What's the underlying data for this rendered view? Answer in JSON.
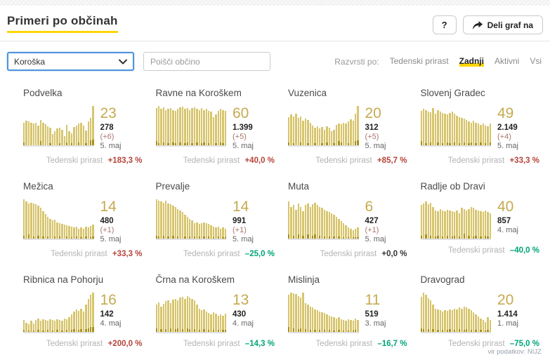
{
  "header": {
    "title": "Primeri po občinah",
    "help_button": "?",
    "share_button": "Deli graf na"
  },
  "filters": {
    "region_select": {
      "value": "Koroška"
    },
    "search": {
      "placeholder": "Poišči občino"
    },
    "sort": {
      "label": "Razvrsti po:",
      "options": [
        {
          "label": "Tedenski prirast",
          "active": false
        },
        {
          "label": "Zadnji",
          "active": true
        },
        {
          "label": "Aktivni",
          "active": false
        },
        {
          "label": "Vsi",
          "active": false
        }
      ]
    }
  },
  "growth_label": "Tedenski prirast",
  "colors": {
    "accent_yellow": "#ffd500",
    "bar_light": "#d7c56d",
    "bar_dark": "#a8901c",
    "big_number_gold": "#c6aa4f",
    "growth_up_red": "#b5443a",
    "growth_down_green": "#00a478",
    "growth_zero_dark": "#333333",
    "select_focus_blue": "#4e94dc"
  },
  "cards": [
    {
      "name": "Podvelka",
      "big": "23",
      "total": "278",
      "delta": "(+6)",
      "date": "5. maj",
      "growth_value": "+183,3 %",
      "growth_dir": "up",
      "chart_data": {
        "type": "bar",
        "bars": [
          58,
          63,
          60,
          57,
          55,
          57,
          50,
          64,
          57,
          54,
          48,
          44,
          28,
          36,
          42,
          44,
          40,
          24,
          52,
          36,
          30,
          46,
          50,
          55,
          58,
          50,
          38,
          60,
          70,
          100
        ],
        "base": [
          8,
          0,
          0,
          0,
          0,
          0,
          0,
          10,
          0,
          0,
          0,
          5,
          0,
          0,
          0,
          5,
          0,
          0,
          8,
          0,
          5,
          0,
          0,
          8,
          0,
          0,
          5,
          0,
          12,
          14
        ]
      }
    },
    {
      "name": "Ravne na Koroškem",
      "big": "60",
      "total": "1.399",
      "delta": "(+5)",
      "date": "5. maj",
      "growth_value": "+40,0 %",
      "growth_dir": "up",
      "chart_data": {
        "type": "bar",
        "bars": [
          95,
          100,
          92,
          96,
          90,
          92,
          95,
          90,
          88,
          92,
          96,
          98,
          92,
          95,
          90,
          94,
          96,
          92,
          90,
          94,
          90,
          92,
          88,
          85,
          72,
          78,
          88,
          92,
          90,
          88
        ],
        "base": [
          10,
          6,
          0,
          8,
          0,
          6,
          0,
          8,
          6,
          0,
          8,
          0,
          6,
          8,
          0,
          6,
          0,
          8,
          0,
          6,
          8,
          0,
          6,
          0,
          0,
          6,
          0,
          8,
          6,
          0
        ]
      }
    },
    {
      "name": "Vuzenica",
      "big": "20",
      "total": "312",
      "delta": "(+5)",
      "date": "5. maj",
      "growth_value": "+85,7 %",
      "growth_dir": "up",
      "chart_data": {
        "type": "bar",
        "bars": [
          72,
          78,
          74,
          80,
          70,
          74,
          62,
          68,
          64,
          58,
          50,
          45,
          48,
          42,
          46,
          40,
          48,
          44,
          36,
          40,
          52,
          56,
          54,
          58,
          56,
          60,
          66,
          62,
          80,
          100
        ],
        "base": [
          8,
          0,
          6,
          0,
          0,
          8,
          0,
          0,
          6,
          0,
          0,
          6,
          0,
          0,
          6,
          0,
          8,
          0,
          0,
          6,
          0,
          10,
          8,
          0,
          0,
          6,
          0,
          0,
          10,
          12
        ]
      }
    },
    {
      "name": "Slovenj Gradec",
      "big": "49",
      "total": "2.149",
      "delta": "(+4)",
      "date": "5. maj",
      "growth_value": "+33,3 %",
      "growth_dir": "up",
      "chart_data": {
        "type": "bar",
        "bars": [
          88,
          92,
          90,
          86,
          84,
          95,
          80,
          90,
          85,
          82,
          80,
          78,
          82,
          85,
          80,
          75,
          72,
          70,
          68,
          64,
          60,
          58,
          62,
          58,
          55,
          52,
          56,
          50,
          48,
          55
        ],
        "base": [
          10,
          0,
          6,
          0,
          8,
          0,
          0,
          8,
          0,
          6,
          0,
          8,
          6,
          0,
          8,
          0,
          6,
          0,
          8,
          0,
          6,
          8,
          0,
          6,
          0,
          8,
          0,
          6,
          0,
          8
        ]
      }
    },
    {
      "name": "Mežica",
      "big": "14",
      "total": "480",
      "delta": "(+1)",
      "date": "5. maj",
      "growth_value": "+33,3 %",
      "growth_dir": "up",
      "chart_data": {
        "type": "bar",
        "bars": [
          100,
          94,
          90,
          92,
          90,
          88,
          84,
          78,
          70,
          62,
          55,
          50,
          46,
          48,
          42,
          40,
          38,
          36,
          34,
          32,
          30,
          28,
          30,
          26,
          28,
          25,
          30,
          28,
          32,
          36
        ],
        "base": [
          8,
          0,
          10,
          0,
          6,
          0,
          8,
          0,
          6,
          0,
          6,
          0,
          0,
          6,
          0,
          5,
          0,
          0,
          5,
          0,
          4,
          0,
          5,
          0,
          4,
          0,
          5,
          0,
          4,
          6
        ]
      }
    },
    {
      "name": "Prevalje",
      "big": "14",
      "total": "991",
      "delta": "(+1)",
      "date": "5. maj",
      "growth_value": "–25,0 %",
      "growth_dir": "down",
      "chart_data": {
        "type": "bar",
        "bars": [
          100,
          97,
          94,
          92,
          96,
          90,
          88,
          84,
          80,
          75,
          72,
          68,
          60,
          55,
          50,
          46,
          40,
          42,
          38,
          40,
          42,
          40,
          38,
          34,
          30,
          28,
          30,
          26,
          28,
          25
        ],
        "base": [
          8,
          6,
          0,
          8,
          0,
          6,
          0,
          8,
          0,
          6,
          0,
          0,
          6,
          0,
          6,
          0,
          5,
          0,
          5,
          0,
          6,
          0,
          5,
          0,
          4,
          0,
          5,
          0,
          4,
          4
        ]
      }
    },
    {
      "name": "Muta",
      "big": "6",
      "total": "427",
      "delta": "(+1)",
      "date": "5. maj",
      "growth_value": "+0,0 %",
      "growth_dir": "zero",
      "chart_data": {
        "type": "bar",
        "bars": [
          95,
          80,
          86,
          74,
          90,
          80,
          70,
          85,
          90,
          80,
          88,
          92,
          85,
          80,
          78,
          74,
          70,
          68,
          64,
          60,
          55,
          50,
          45,
          40,
          34,
          28,
          25,
          22,
          26,
          28
        ],
        "base": [
          10,
          0,
          8,
          0,
          10,
          0,
          8,
          0,
          10,
          0,
          8,
          10,
          0,
          8,
          0,
          6,
          0,
          6,
          0,
          5,
          0,
          5,
          0,
          4,
          0,
          4,
          0,
          3,
          4,
          4
        ]
      }
    },
    {
      "name": "Radlje ob Dravi",
      "big": "40",
      "total": "857",
      "delta": null,
      "date": "4. maj",
      "growth_value": "–40,0 %",
      "growth_dir": "down",
      "chart_data": {
        "type": "bar",
        "bars": [
          86,
          90,
          95,
          88,
          92,
          80,
          72,
          70,
          75,
          72,
          70,
          74,
          72,
          70,
          68,
          72,
          64,
          78,
          75,
          72,
          76,
          80,
          78,
          74,
          72,
          70,
          68,
          72,
          68,
          64
        ],
        "base": [
          8,
          0,
          10,
          0,
          8,
          0,
          6,
          8,
          0,
          6,
          0,
          8,
          0,
          6,
          8,
          0,
          6,
          0,
          12,
          0,
          8,
          0,
          6,
          8,
          0,
          6,
          0,
          8,
          6,
          0
        ]
      }
    },
    {
      "name": "Ribnica na Pohorju",
      "big": "16",
      "total": "142",
      "delta": null,
      "date": "4. maj",
      "growth_value": "+200,0 %",
      "growth_dir": "up",
      "chart_data": {
        "type": "bar",
        "bars": [
          30,
          24,
          20,
          28,
          22,
          30,
          34,
          28,
          32,
          30,
          28,
          32,
          30,
          28,
          32,
          30,
          28,
          35,
          32,
          38,
          45,
          52,
          58,
          54,
          60,
          52,
          70,
          85,
          95,
          100
        ],
        "base": [
          6,
          0,
          4,
          0,
          4,
          0,
          6,
          0,
          4,
          0,
          6,
          0,
          4,
          0,
          6,
          0,
          4,
          0,
          6,
          0,
          6,
          8,
          0,
          6,
          8,
          0,
          8,
          10,
          12,
          12
        ]
      }
    },
    {
      "name": "Črna na Koroškem",
      "big": "13",
      "total": "430",
      "delta": null,
      "date": "4. maj",
      "growth_value": "–14,3 %",
      "growth_dir": "down",
      "chart_data": {
        "type": "bar",
        "bars": [
          70,
          75,
          64,
          72,
          78,
          80,
          74,
          82,
          85,
          80,
          88,
          90,
          85,
          92,
          88,
          84,
          80,
          70,
          60,
          55,
          58,
          52,
          48,
          45,
          50,
          46,
          42,
          45,
          42,
          46
        ],
        "base": [
          10,
          0,
          8,
          0,
          8,
          0,
          10,
          0,
          8,
          10,
          0,
          8,
          0,
          10,
          8,
          0,
          8,
          0,
          6,
          0,
          8,
          0,
          6,
          0,
          6,
          0,
          5,
          0,
          5,
          6
        ]
      }
    },
    {
      "name": "Mislinja",
      "big": "11",
      "total": "519",
      "delta": null,
      "date": "3. maj",
      "growth_value": "–16,7 %",
      "growth_dir": "down",
      "chart_data": {
        "type": "bar",
        "bars": [
          95,
          100,
          98,
          96,
          92,
          88,
          100,
          74,
          70,
          65,
          62,
          58,
          55,
          52,
          50,
          48,
          45,
          42,
          40,
          38,
          35,
          38,
          32,
          30,
          28,
          32,
          30,
          28,
          35,
          30
        ],
        "base": [
          12,
          0,
          10,
          0,
          8,
          10,
          0,
          8,
          0,
          6,
          0,
          6,
          0,
          5,
          0,
          5,
          0,
          5,
          0,
          4,
          0,
          5,
          0,
          4,
          0,
          4,
          0,
          4,
          5,
          0
        ]
      }
    },
    {
      "name": "Dravograd",
      "big": "20",
      "total": "1.414",
      "delta": null,
      "date": "1. maj",
      "growth_value": "–75,0 %",
      "growth_dir": "down",
      "chart_data": {
        "type": "bar",
        "bars": [
          90,
          100,
          94,
          86,
          80,
          70,
          60,
          58,
          55,
          52,
          56,
          54,
          58,
          55,
          60,
          58,
          62,
          60,
          64,
          62,
          60,
          55,
          50,
          45,
          40,
          34,
          30,
          25,
          38,
          30
        ],
        "base": [
          10,
          8,
          0,
          8,
          0,
          8,
          0,
          6,
          0,
          6,
          0,
          6,
          8,
          0,
          6,
          0,
          8,
          0,
          6,
          8,
          0,
          6,
          0,
          5,
          0,
          5,
          0,
          4,
          6,
          0
        ]
      }
    }
  ],
  "footer": {
    "source": "vir podatkov: NIJZ"
  }
}
